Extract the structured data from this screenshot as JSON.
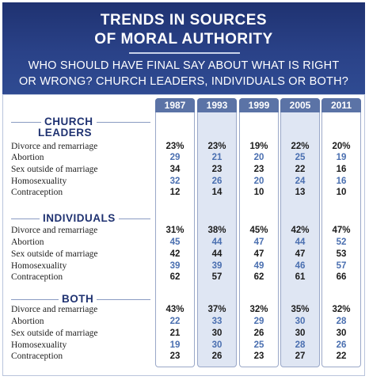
{
  "title_lines": [
    "TRENDS IN SOURCES",
    "OF MORAL AUTHORITY"
  ],
  "subtitle_lines": [
    "WHO SHOULD HAVE FINAL SAY ABOUT WHAT IS RIGHT",
    "OR WRONG?  CHURCH LEADERS, INDIVIDUALS OR BOTH?"
  ],
  "colors": {
    "header": "#2a4288",
    "year_tab": "#5b73a6",
    "shaded_column": "#dfe6f3",
    "dark_value": "#1b1b1b",
    "blue_value": "#4a6fb0"
  },
  "chart_data": {
    "type": "table",
    "columns": [
      "1987",
      "1993",
      "1999",
      "2005",
      "2011"
    ],
    "sections": [
      {
        "title_lines": [
          "CHURCH",
          "LEADERS"
        ],
        "rows": [
          {
            "label": "Divorce and remarriage",
            "values": [
              "23%",
              "23%",
              "19%",
              "22%",
              "20%"
            ]
          },
          {
            "label": "Abortion",
            "values": [
              "29",
              "21",
              "20",
              "25",
              "19"
            ]
          },
          {
            "label": "Sex outside of marriage",
            "values": [
              "34",
              "23",
              "23",
              "22",
              "16"
            ]
          },
          {
            "label": "Homosexuality",
            "values": [
              "32",
              "26",
              "20",
              "24",
              "16"
            ]
          },
          {
            "label": "Contraception",
            "values": [
              "12",
              "14",
              "10",
              "13",
              "10"
            ]
          }
        ]
      },
      {
        "title_lines": [
          "INDIVIDUALS"
        ],
        "rows": [
          {
            "label": "Divorce and remarriage",
            "values": [
              "31%",
              "38%",
              "45%",
              "42%",
              "47%"
            ]
          },
          {
            "label": "Abortion",
            "values": [
              "45",
              "44",
              "47",
              "44",
              "52"
            ]
          },
          {
            "label": "Sex outside of marriage",
            "values": [
              "42",
              "44",
              "47",
              "47",
              "53"
            ]
          },
          {
            "label": "Homosexuality",
            "values": [
              "39",
              "39",
              "49",
              "46",
              "57"
            ]
          },
          {
            "label": "Contraception",
            "values": [
              "62",
              "57",
              "62",
              "61",
              "66"
            ]
          }
        ]
      },
      {
        "title_lines": [
          "BOTH"
        ],
        "rows": [
          {
            "label": "Divorce and remarriage",
            "values": [
              "43%",
              "37%",
              "32%",
              "35%",
              "32%"
            ]
          },
          {
            "label": "Abortion",
            "values": [
              "22",
              "33",
              "29",
              "30",
              "28"
            ]
          },
          {
            "label": "Sex outside of marriage",
            "values": [
              "21",
              "30",
              "26",
              "30",
              "30"
            ]
          },
          {
            "label": "Homosexuality",
            "values": [
              "19",
              "30",
              "25",
              "28",
              "26"
            ]
          },
          {
            "label": "Contraception",
            "values": [
              "23",
              "26",
              "23",
              "27",
              "22"
            ]
          }
        ]
      }
    ]
  }
}
